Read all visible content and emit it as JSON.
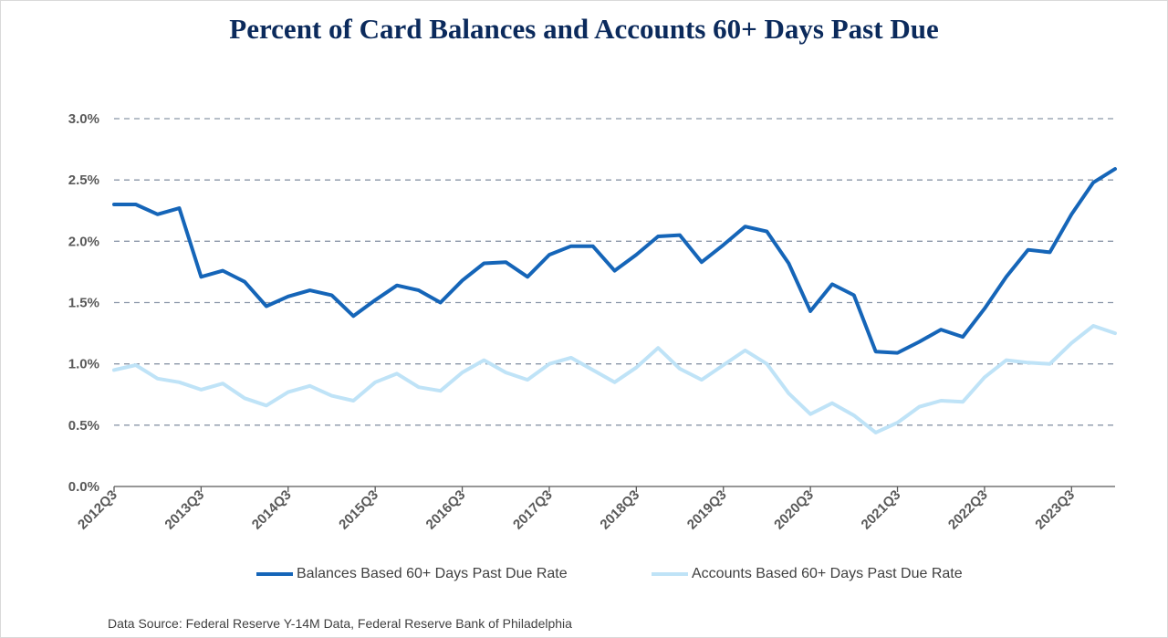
{
  "chart_data": {
    "type": "line",
    "title": "Percent of Card Balances and Accounts 60+ Days Past Due",
    "xlabel": "",
    "ylabel": "",
    "ylim": [
      0,
      3.0
    ],
    "yticks": [
      "0.0%",
      "0.5%",
      "1.0%",
      "1.5%",
      "2.0%",
      "2.5%",
      "3.0%"
    ],
    "xticks": [
      "2012Q3",
      "2013Q3",
      "2014Q3",
      "2015Q3",
      "2016Q3",
      "2017Q3",
      "2018Q3",
      "2019Q3",
      "2020Q3",
      "2021Q3",
      "2022Q3",
      "2023Q3"
    ],
    "x": [
      "2012Q3",
      "2012Q4",
      "2013Q1",
      "2013Q2",
      "2013Q3",
      "2013Q4",
      "2014Q1",
      "2014Q2",
      "2014Q3",
      "2014Q4",
      "2015Q1",
      "2015Q2",
      "2015Q3",
      "2015Q4",
      "2016Q1",
      "2016Q2",
      "2016Q3",
      "2016Q4",
      "2017Q1",
      "2017Q2",
      "2017Q3",
      "2017Q4",
      "2018Q1",
      "2018Q2",
      "2018Q3",
      "2018Q4",
      "2019Q1",
      "2019Q2",
      "2019Q3",
      "2019Q4",
      "2020Q1",
      "2020Q2",
      "2020Q3",
      "2020Q4",
      "2021Q1",
      "2021Q2",
      "2021Q3",
      "2021Q4",
      "2022Q1",
      "2022Q2",
      "2022Q3",
      "2022Q4",
      "2023Q1",
      "2023Q2",
      "2023Q3",
      "2023Q4",
      "2024Q1"
    ],
    "grid": true,
    "legend_position": "bottom",
    "colors": {
      "balances": "#1565b8",
      "accounts": "#bfe3f7",
      "grid": "#8a96a8",
      "axis": "#404040",
      "title": "#0b2a5c"
    },
    "series": [
      {
        "name": "Balances Based 60+ Days Past Due Rate",
        "values": [
          2.3,
          2.3,
          2.22,
          2.27,
          1.71,
          1.76,
          1.67,
          1.47,
          1.55,
          1.6,
          1.56,
          1.39,
          1.52,
          1.64,
          1.6,
          1.5,
          1.68,
          1.82,
          1.83,
          1.71,
          1.89,
          1.96,
          1.96,
          1.76,
          1.89,
          2.04,
          2.05,
          1.83,
          1.97,
          2.12,
          2.08,
          1.82,
          1.43,
          1.65,
          1.56,
          1.1,
          1.09,
          1.18,
          1.28,
          1.22,
          1.45,
          1.71,
          1.93,
          1.91,
          2.22,
          2.48,
          2.59
        ]
      },
      {
        "name": "Accounts Based 60+ Days Past Due Rate",
        "values": [
          0.95,
          0.99,
          0.88,
          0.85,
          0.79,
          0.84,
          0.72,
          0.66,
          0.77,
          0.82,
          0.74,
          0.7,
          0.85,
          0.92,
          0.81,
          0.78,
          0.93,
          1.03,
          0.93,
          0.87,
          1.0,
          1.05,
          0.95,
          0.85,
          0.97,
          1.13,
          0.96,
          0.87,
          0.99,
          1.11,
          1.0,
          0.76,
          0.59,
          0.68,
          0.58,
          0.44,
          0.52,
          0.65,
          0.7,
          0.69,
          0.89,
          1.03,
          1.01,
          1.0,
          1.17,
          1.31,
          1.25
        ]
      }
    ]
  },
  "source": "Data Source: Federal Reserve Y-14M Data, Federal Reserve Bank of Philadelphia"
}
